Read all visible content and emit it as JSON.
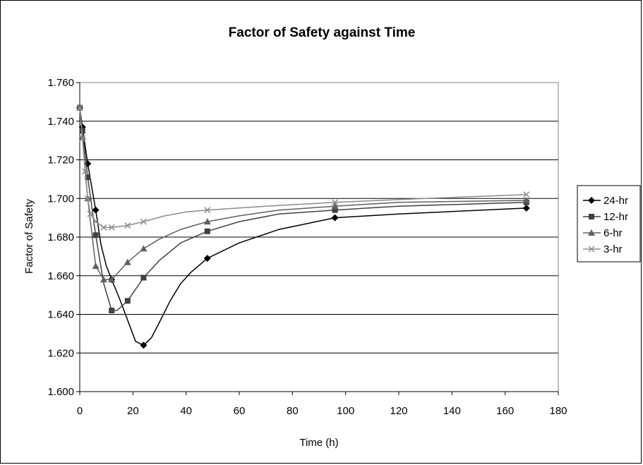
{
  "chart_data": {
    "type": "line",
    "title": "Factor of Safety against Time",
    "xlabel": "Time (h)",
    "ylabel": "Factor of Safety",
    "xlim": [
      0,
      180
    ],
    "ylim": [
      1.6,
      1.76
    ],
    "x_ticks": [
      "0",
      "20",
      "40",
      "60",
      "80",
      "100",
      "120",
      "140",
      "160",
      "180"
    ],
    "y_ticks": [
      "1.600",
      "1.620",
      "1.640",
      "1.660",
      "1.680",
      "1.700",
      "1.720",
      "1.740",
      "1.760"
    ],
    "grid": "horizontal",
    "legend_position": "right",
    "series": [
      {
        "name": "24-hr",
        "color": "#000000",
        "marker": "diamond",
        "points": [
          [
            0,
            1.747
          ],
          [
            1,
            1.737
          ],
          [
            3,
            1.718
          ],
          [
            6,
            1.694
          ],
          [
            12,
            1.658
          ],
          [
            24,
            1.624
          ],
          [
            48,
            1.669
          ],
          [
            96,
            1.69
          ],
          [
            168,
            1.695
          ]
        ],
        "curve": [
          [
            0,
            1.747
          ],
          [
            1,
            1.737
          ],
          [
            3,
            1.718
          ],
          [
            6,
            1.694
          ],
          [
            8,
            1.676
          ],
          [
            10,
            1.665
          ],
          [
            12,
            1.658
          ],
          [
            15,
            1.648
          ],
          [
            18,
            1.637
          ],
          [
            21,
            1.626
          ],
          [
            24,
            1.624
          ],
          [
            27,
            1.628
          ],
          [
            30,
            1.636
          ],
          [
            34,
            1.647
          ],
          [
            38,
            1.656
          ],
          [
            42,
            1.662
          ],
          [
            48,
            1.669
          ],
          [
            60,
            1.677
          ],
          [
            75,
            1.684
          ],
          [
            96,
            1.69
          ],
          [
            120,
            1.692
          ],
          [
            168,
            1.695
          ]
        ]
      },
      {
        "name": "12-hr",
        "color": "#404040",
        "marker": "square",
        "points": [
          [
            0,
            1.747
          ],
          [
            1,
            1.735
          ],
          [
            3,
            1.711
          ],
          [
            6,
            1.681
          ],
          [
            12,
            1.642
          ],
          [
            18,
            1.647
          ],
          [
            24,
            1.659
          ],
          [
            48,
            1.683
          ],
          [
            96,
            1.694
          ],
          [
            168,
            1.698
          ]
        ],
        "curve": [
          [
            0,
            1.747
          ],
          [
            1,
            1.735
          ],
          [
            3,
            1.711
          ],
          [
            6,
            1.681
          ],
          [
            9,
            1.656
          ],
          [
            12,
            1.642
          ],
          [
            14,
            1.642
          ],
          [
            18,
            1.647
          ],
          [
            24,
            1.659
          ],
          [
            30,
            1.668
          ],
          [
            38,
            1.677
          ],
          [
            48,
            1.683
          ],
          [
            60,
            1.688
          ],
          [
            75,
            1.692
          ],
          [
            96,
            1.694
          ],
          [
            120,
            1.696
          ],
          [
            168,
            1.698
          ]
        ]
      },
      {
        "name": "6-hr",
        "color": "#606060",
        "marker": "triangle",
        "points": [
          [
            0,
            1.747
          ],
          [
            1,
            1.732
          ],
          [
            3,
            1.7
          ],
          [
            6,
            1.665
          ],
          [
            9,
            1.658
          ],
          [
            12,
            1.658
          ],
          [
            18,
            1.667
          ],
          [
            24,
            1.674
          ],
          [
            48,
            1.688
          ],
          [
            96,
            1.696
          ],
          [
            168,
            1.699
          ]
        ],
        "curve": [
          [
            0,
            1.747
          ],
          [
            1,
            1.732
          ],
          [
            3,
            1.7
          ],
          [
            6,
            1.665
          ],
          [
            9,
            1.658
          ],
          [
            12,
            1.658
          ],
          [
            18,
            1.667
          ],
          [
            24,
            1.674
          ],
          [
            30,
            1.679
          ],
          [
            38,
            1.684
          ],
          [
            48,
            1.688
          ],
          [
            60,
            1.691
          ],
          [
            75,
            1.694
          ],
          [
            96,
            1.696
          ],
          [
            120,
            1.698
          ],
          [
            168,
            1.699
          ]
        ]
      },
      {
        "name": "3-hr",
        "color": "#8c8c8c",
        "marker": "x",
        "points": [
          [
            0,
            1.747
          ],
          [
            1,
            1.731
          ],
          [
            2,
            1.714
          ],
          [
            3,
            1.7
          ],
          [
            4,
            1.692
          ],
          [
            6,
            1.688
          ],
          [
            9,
            1.685
          ],
          [
            12,
            1.685
          ],
          [
            18,
            1.686
          ],
          [
            24,
            1.688
          ],
          [
            48,
            1.694
          ],
          [
            96,
            1.698
          ],
          [
            168,
            1.702
          ]
        ],
        "curve": [
          [
            0,
            1.747
          ],
          [
            1,
            1.731
          ],
          [
            2,
            1.714
          ],
          [
            3,
            1.7
          ],
          [
            4,
            1.692
          ],
          [
            6,
            1.688
          ],
          [
            9,
            1.685
          ],
          [
            12,
            1.685
          ],
          [
            18,
            1.686
          ],
          [
            24,
            1.688
          ],
          [
            32,
            1.691
          ],
          [
            40,
            1.693
          ],
          [
            48,
            1.694
          ],
          [
            70,
            1.696
          ],
          [
            96,
            1.698
          ],
          [
            130,
            1.7
          ],
          [
            168,
            1.702
          ]
        ]
      }
    ]
  }
}
